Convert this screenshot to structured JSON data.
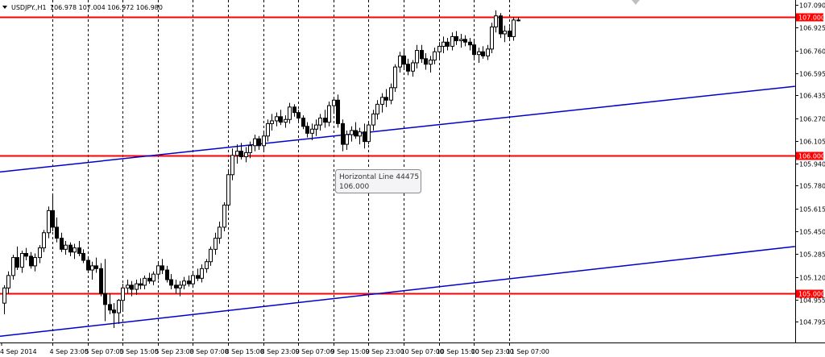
{
  "header": {
    "dropdown_icon": "triangle-down-icon",
    "symbol": "USDJPY.,H1",
    "ohlc": "106.978 107.004 106.972 106.980"
  },
  "tooltip": {
    "line1": "Horizontal Line 44475",
    "line2": "106.000"
  },
  "chart_data": {
    "type": "candlestick",
    "symbol": "USDJPY.",
    "timeframe": "H1",
    "ylim": [
      104.645,
      107.125
    ],
    "y_ticks": [
      "107.090",
      "106.925",
      "106.760",
      "106.595",
      "106.435",
      "106.270",
      "106.105",
      "105.940",
      "105.780",
      "105.615",
      "105.450",
      "105.285",
      "105.120",
      "104.955",
      "104.795"
    ],
    "x_ticks": [
      "4 Sep 2014",
      "4 Sep 23:00",
      "5 Sep 07:00",
      "5 Sep 15:00",
      "5 Sep 23:00",
      "8 Sep 07:00",
      "8 Sep 15:00",
      "8 Sep 23:00",
      "9 Sep 07:00",
      "9 Sep 15:00",
      "9 Sep 23:00",
      "10 Sep 07:00",
      "10 Sep 15:00",
      "10 Sep 23:00",
      "11 Sep 07:00"
    ],
    "grid": "vertical-dashed",
    "colors": {
      "bull": "#ffffff",
      "bear": "#000000",
      "hline": "#ff0000",
      "channel": "#0000cc",
      "grid": "#000000"
    },
    "horizontal_lines": [
      {
        "label": "107.000",
        "value": 107.0
      },
      {
        "label": "106.000",
        "value": 106.0
      },
      {
        "label": "105.000",
        "value": 105.0
      }
    ],
    "channel_lines": [
      {
        "from": {
          "bar": 0,
          "price": 105.88
        },
        "to": {
          "bar": 164,
          "price": 106.5
        }
      },
      {
        "from": {
          "bar": 0,
          "price": 104.69
        },
        "to": {
          "bar": 164,
          "price": 105.34
        }
      }
    ],
    "candles": [
      [
        104.93,
        105.06,
        104.85,
        105.04
      ],
      [
        105.04,
        105.16,
        105.0,
        105.13
      ],
      [
        105.13,
        105.28,
        105.1,
        105.26
      ],
      [
        105.26,
        105.34,
        105.17,
        105.19
      ],
      [
        105.19,
        105.31,
        105.15,
        105.29
      ],
      [
        105.29,
        105.33,
        105.24,
        105.27
      ],
      [
        105.27,
        105.3,
        105.18,
        105.2
      ],
      [
        105.2,
        105.29,
        105.16,
        105.26
      ],
      [
        105.26,
        105.35,
        105.22,
        105.33
      ],
      [
        105.33,
        105.46,
        105.3,
        105.44
      ],
      [
        105.44,
        105.63,
        105.4,
        105.6
      ],
      [
        105.6,
        105.71,
        105.45,
        105.48
      ],
      [
        105.48,
        105.55,
        105.37,
        105.4
      ],
      [
        105.4,
        105.44,
        105.3,
        105.32
      ],
      [
        105.32,
        105.38,
        105.28,
        105.35
      ],
      [
        105.35,
        105.37,
        105.27,
        105.3
      ],
      [
        105.3,
        105.36,
        105.25,
        105.33
      ],
      [
        105.33,
        105.38,
        105.27,
        105.29
      ],
      [
        105.29,
        105.32,
        105.22,
        105.24
      ],
      [
        105.24,
        105.27,
        105.15,
        105.17
      ],
      [
        105.17,
        105.23,
        105.1,
        105.2
      ],
      [
        105.2,
        105.26,
        105.15,
        105.18
      ],
      [
        105.18,
        105.22,
        104.98,
        105.0
      ],
      [
        105.0,
        105.25,
        104.8,
        104.92
      ],
      [
        104.92,
        105.0,
        104.85,
        104.88
      ],
      [
        104.88,
        104.93,
        104.75,
        104.86
      ],
      [
        104.86,
        104.96,
        104.78,
        104.95
      ],
      [
        104.95,
        105.07,
        104.88,
        105.04
      ],
      [
        105.04,
        105.1,
        105.0,
        105.06
      ],
      [
        105.06,
        105.09,
        104.98,
        105.03
      ],
      [
        105.03,
        105.1,
        104.99,
        105.07
      ],
      [
        105.07,
        105.11,
        105.03,
        105.06
      ],
      [
        105.06,
        105.13,
        105.03,
        105.11
      ],
      [
        105.11,
        105.15,
        105.07,
        105.09
      ],
      [
        105.09,
        105.16,
        105.06,
        105.14
      ],
      [
        105.14,
        105.22,
        105.1,
        105.2
      ],
      [
        105.2,
        105.25,
        105.14,
        105.17
      ],
      [
        105.17,
        105.2,
        105.08,
        105.1
      ],
      [
        105.1,
        105.14,
        105.03,
        105.06
      ],
      [
        105.06,
        105.1,
        105.0,
        105.04
      ],
      [
        105.04,
        105.09,
        104.98,
        105.06
      ],
      [
        105.06,
        105.12,
        105.03,
        105.09
      ],
      [
        105.09,
        105.13,
        105.05,
        105.07
      ],
      [
        105.07,
        105.15,
        105.04,
        105.13
      ],
      [
        105.13,
        105.18,
        105.09,
        105.11
      ],
      [
        105.11,
        105.21,
        105.08,
        105.18
      ],
      [
        105.18,
        105.25,
        105.15,
        105.23
      ],
      [
        105.23,
        105.34,
        105.2,
        105.32
      ],
      [
        105.32,
        105.44,
        105.28,
        105.4
      ],
      [
        105.4,
        105.52,
        105.36,
        105.48
      ],
      [
        105.48,
        105.66,
        105.45,
        105.64
      ],
      [
        105.64,
        105.9,
        105.6,
        105.86
      ],
      [
        105.86,
        106.05,
        105.82,
        106.0
      ],
      [
        106.0,
        106.08,
        105.94,
        106.03
      ],
      [
        106.03,
        106.09,
        105.97,
        105.99
      ],
      [
        105.99,
        106.06,
        105.95,
        106.02
      ],
      [
        106.02,
        106.1,
        105.98,
        106.07
      ],
      [
        106.07,
        106.15,
        106.03,
        106.12
      ],
      [
        106.12,
        106.14,
        106.04,
        106.07
      ],
      [
        106.07,
        106.18,
        106.03,
        106.14
      ],
      [
        106.14,
        106.26,
        106.1,
        106.23
      ],
      [
        106.23,
        106.3,
        106.18,
        106.25
      ],
      [
        106.25,
        106.31,
        106.21,
        106.28
      ],
      [
        106.28,
        106.33,
        106.22,
        106.24
      ],
      [
        106.24,
        106.29,
        106.2,
        106.26
      ],
      [
        106.26,
        106.38,
        106.23,
        106.35
      ],
      [
        106.35,
        106.37,
        106.28,
        106.31
      ],
      [
        106.31,
        106.33,
        106.24,
        106.27
      ],
      [
        106.27,
        106.29,
        106.19,
        106.21
      ],
      [
        106.21,
        106.24,
        106.13,
        106.16
      ],
      [
        106.16,
        106.23,
        106.11,
        106.19
      ],
      [
        106.19,
        106.26,
        106.14,
        106.22
      ],
      [
        106.22,
        106.3,
        106.18,
        106.27
      ],
      [
        106.27,
        106.33,
        106.2,
        106.24
      ],
      [
        106.24,
        106.39,
        106.21,
        106.36
      ],
      [
        106.36,
        106.42,
        106.3,
        106.4
      ],
      [
        106.4,
        106.44,
        106.2,
        106.23
      ],
      [
        106.23,
        106.26,
        106.03,
        106.08
      ],
      [
        106.08,
        106.18,
        106.04,
        106.15
      ],
      [
        106.15,
        106.21,
        106.1,
        106.18
      ],
      [
        106.18,
        106.24,
        106.12,
        106.14
      ],
      [
        106.14,
        106.2,
        106.08,
        106.17
      ],
      [
        106.17,
        106.23,
        106.05,
        106.1
      ],
      [
        106.1,
        106.24,
        106.08,
        106.22
      ],
      [
        106.22,
        106.33,
        106.18,
        106.3
      ],
      [
        106.3,
        106.4,
        106.26,
        106.37
      ],
      [
        106.37,
        106.45,
        106.31,
        106.42
      ],
      [
        106.42,
        106.48,
        106.35,
        106.4
      ],
      [
        106.4,
        106.52,
        106.37,
        106.49
      ],
      [
        106.49,
        106.66,
        106.46,
        106.64
      ],
      [
        106.64,
        106.75,
        106.6,
        106.72
      ],
      [
        106.72,
        106.77,
        106.62,
        106.66
      ],
      [
        106.66,
        106.7,
        106.58,
        106.61
      ],
      [
        106.61,
        106.69,
        106.57,
        106.67
      ],
      [
        106.67,
        106.8,
        106.63,
        106.76
      ],
      [
        106.76,
        106.8,
        106.67,
        106.7
      ],
      [
        106.7,
        106.74,
        106.62,
        106.66
      ],
      [
        106.66,
        106.72,
        106.6,
        106.69
      ],
      [
        106.69,
        106.78,
        106.66,
        106.75
      ],
      [
        106.75,
        106.82,
        106.7,
        106.79
      ],
      [
        106.79,
        106.86,
        106.74,
        106.82
      ],
      [
        106.82,
        106.85,
        106.76,
        106.79
      ],
      [
        106.79,
        106.89,
        106.76,
        106.86
      ],
      [
        106.86,
        106.9,
        106.8,
        106.83
      ],
      [
        106.83,
        106.88,
        106.78,
        106.84
      ],
      [
        106.84,
        106.87,
        106.79,
        106.82
      ],
      [
        106.82,
        106.85,
        106.76,
        106.8
      ],
      [
        106.8,
        106.84,
        106.7,
        106.73
      ],
      [
        106.73,
        106.78,
        106.67,
        106.75
      ],
      [
        106.75,
        106.79,
        106.7,
        106.72
      ],
      [
        106.72,
        106.8,
        106.69,
        106.77
      ],
      [
        106.77,
        106.96,
        106.74,
        106.93
      ],
      [
        106.93,
        107.05,
        106.89,
        107.01
      ],
      [
        107.01,
        107.03,
        106.85,
        106.88
      ],
      [
        106.88,
        106.94,
        106.82,
        106.9
      ],
      [
        106.9,
        106.93,
        106.84,
        106.86
      ],
      [
        106.86,
        107.0,
        106.83,
        106.98
      ],
      [
        106.98,
        107.0,
        106.97,
        106.98
      ]
    ]
  }
}
